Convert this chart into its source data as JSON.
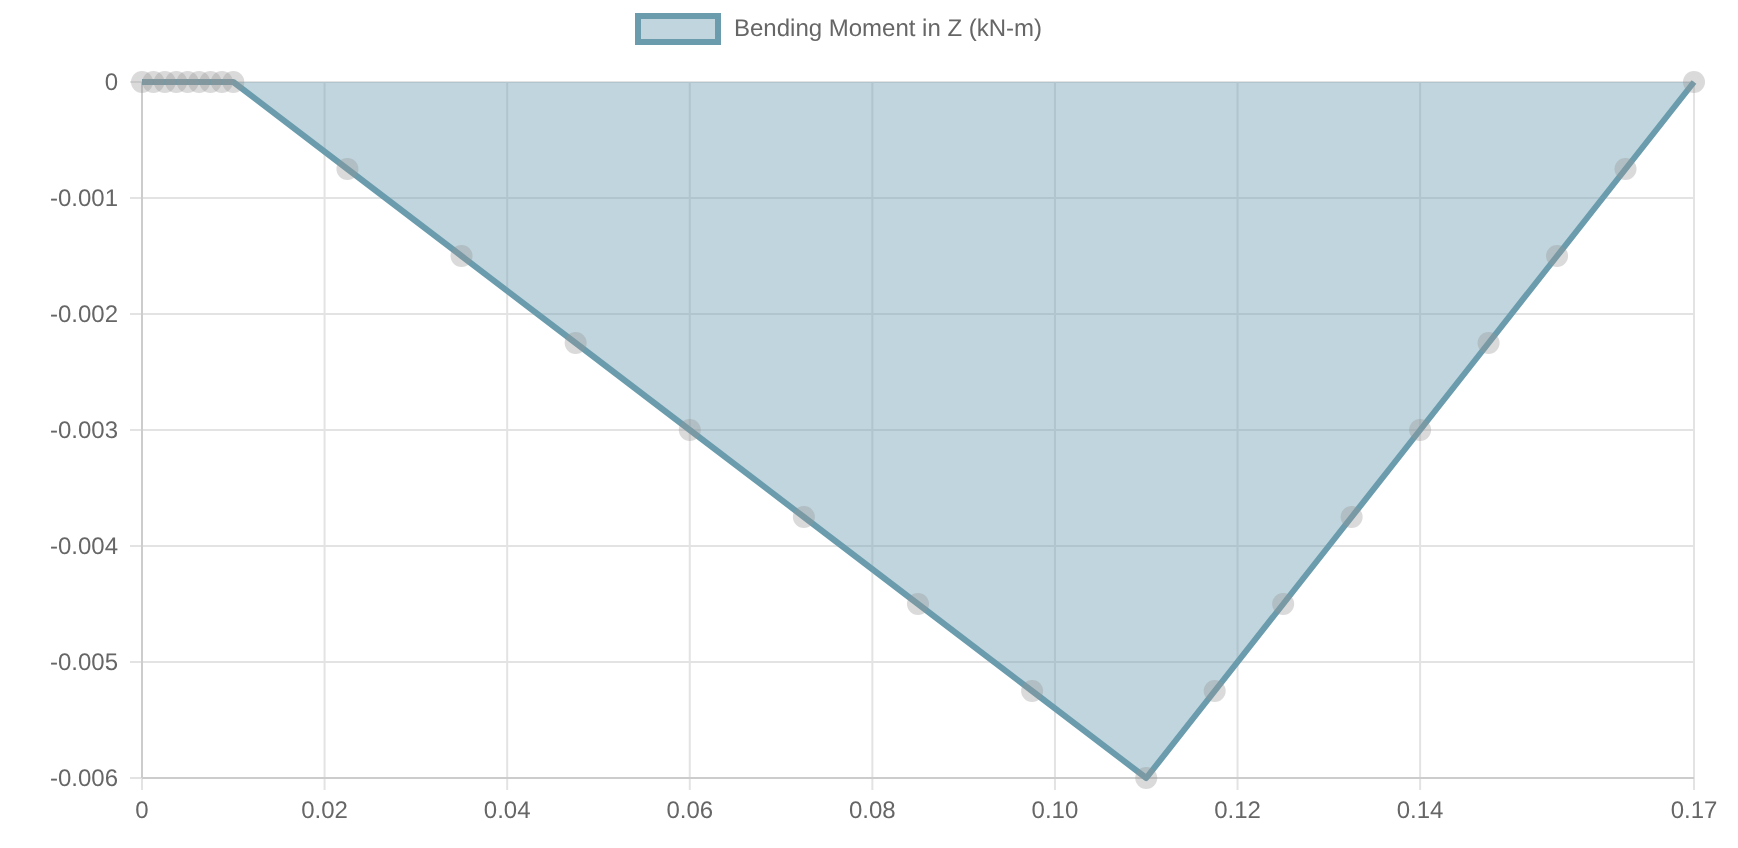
{
  "chart_data": {
    "type": "area",
    "x": [
      0,
      0.00125,
      0.0025,
      0.00375,
      0.005,
      0.00625,
      0.0075,
      0.00875,
      0.01,
      0.0225,
      0.035,
      0.0475,
      0.06,
      0.0725,
      0.085,
      0.0975,
      0.11,
      0.1175,
      0.125,
      0.1325,
      0.14,
      0.1475,
      0.155,
      0.1625,
      0.17
    ],
    "series": [
      {
        "name": "Bending Moment in Z (kN-m)",
        "color": "#6a9cad",
        "values": [
          0,
          0,
          0,
          0,
          0,
          0,
          0,
          0,
          0,
          -0.00075,
          -0.0015,
          -0.00225,
          -0.003,
          -0.00375,
          -0.0045,
          -0.00525,
          -0.006,
          -0.00525,
          -0.0045,
          -0.00375,
          -0.003,
          -0.00225,
          -0.0015,
          -0.00075,
          0
        ]
      }
    ],
    "xlim": [
      0,
      0.17
    ],
    "xticks": [
      0,
      0.02,
      0.04,
      0.06,
      0.08,
      {
        "value": 0.1,
        "label": "0.10"
      },
      0.12,
      0.14,
      0.17
    ],
    "ylim": [
      -0.006,
      0
    ],
    "yticks": [
      -0.006,
      -0.005,
      -0.004,
      -0.003,
      -0.002,
      -0.001,
      0
    ],
    "grid": true,
    "legend": "top",
    "marker": "circle",
    "line_style": "solid"
  }
}
